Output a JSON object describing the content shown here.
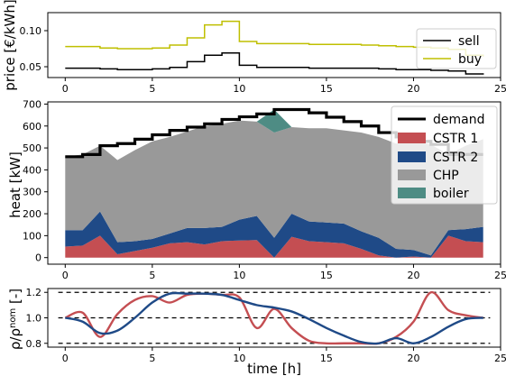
{
  "chart_data": [
    {
      "type": "line",
      "step": true,
      "ylabel": "price [€/kWh]",
      "xlim": [
        -1,
        25
      ],
      "ylim": [
        0.035,
        0.125
      ],
      "xticks": [
        0,
        5,
        10,
        15,
        20,
        25
      ],
      "yticks": [
        0.05,
        0.1
      ],
      "ytick_labels": [
        "0.05",
        "0.10"
      ],
      "legend": "top-right",
      "x": [
        0,
        1,
        2,
        3,
        4,
        5,
        6,
        7,
        8,
        9,
        10,
        11,
        12,
        13,
        14,
        15,
        16,
        17,
        18,
        19,
        20,
        21,
        22,
        23,
        24
      ],
      "series": [
        {
          "name": "sell",
          "color": "#000000",
          "values": [
            0.048,
            0.048,
            0.047,
            0.046,
            0.046,
            0.047,
            0.049,
            0.057,
            0.066,
            0.069,
            0.052,
            0.049,
            0.049,
            0.049,
            0.048,
            0.048,
            0.048,
            0.048,
            0.047,
            0.046,
            0.046,
            0.045,
            0.044,
            0.04,
            0.039
          ]
        },
        {
          "name": "buy",
          "color": "#bfbf00",
          "values": [
            0.078,
            0.078,
            0.076,
            0.075,
            0.075,
            0.076,
            0.08,
            0.09,
            0.108,
            0.113,
            0.085,
            0.082,
            0.082,
            0.082,
            0.081,
            0.081,
            0.081,
            0.08,
            0.079,
            0.078,
            0.077,
            0.076,
            0.074,
            0.066,
            0.064
          ]
        }
      ]
    },
    {
      "type": "area",
      "stacked": true,
      "step": true,
      "ylabel": "heat [kW]",
      "xlim": [
        -1,
        25
      ],
      "ylim": [
        -30,
        710
      ],
      "xticks": [
        0,
        5,
        10,
        15,
        20,
        25
      ],
      "yticks": [
        0,
        100,
        200,
        300,
        400,
        500,
        600,
        700
      ],
      "legend": "top-right",
      "x": [
        0,
        1,
        2,
        3,
        4,
        5,
        6,
        7,
        8,
        9,
        10,
        11,
        12,
        13,
        14,
        15,
        16,
        17,
        18,
        19,
        20,
        21,
        22,
        23,
        24
      ],
      "series": [
        {
          "name": "CSTR 1",
          "color": "#c44e52",
          "values": [
            50,
            55,
            100,
            15,
            30,
            45,
            65,
            70,
            60,
            75,
            78,
            80,
            0,
            95,
            75,
            70,
            65,
            40,
            10,
            0,
            5,
            0,
            100,
            75,
            70
          ]
        },
        {
          "name": "CSTR 2",
          "color": "#1f4a87",
          "values": [
            75,
            70,
            110,
            55,
            45,
            40,
            45,
            65,
            75,
            65,
            95,
            110,
            90,
            105,
            90,
            90,
            90,
            80,
            80,
            40,
            30,
            10,
            25,
            55,
            70
          ]
        },
        {
          "name": "CHP",
          "color": "#999999",
          "values": [
            335,
            345,
            300,
            375,
            415,
            445,
            440,
            440,
            465,
            470,
            452,
            430,
            480,
            395,
            425,
            430,
            425,
            450,
            460,
            480,
            495,
            506,
            345,
            380,
            400
          ]
        },
        {
          "name": "boiler",
          "color": "#4e8c84",
          "values": [
            0,
            0,
            0,
            0,
            0,
            0,
            0,
            0,
            0,
            0,
            0,
            0,
            105,
            0,
            0,
            0,
            0,
            0,
            0,
            0,
            0,
            0,
            0,
            0,
            0
          ]
        }
      ],
      "demand": {
        "name": "demand",
        "color": "#000000",
        "values": [
          460,
          470,
          510,
          520,
          540,
          560,
          580,
          595,
          610,
          630,
          642,
          655,
          675,
          675,
          660,
          640,
          620,
          600,
          570,
          550,
          530,
          516,
          470,
          470,
          470
        ]
      }
    },
    {
      "type": "line",
      "ylabel": "ρ/ρ^nom [-]",
      "xlabel": "time [h]",
      "xlim": [
        -1,
        25
      ],
      "ylim": [
        0.77,
        1.23
      ],
      "xticks": [
        0,
        5,
        10,
        15,
        20,
        25
      ],
      "yticks": [
        0.8,
        1.0,
        1.2
      ],
      "ytick_labels": [
        "0.8",
        "1.0",
        "1.2"
      ],
      "reference_lines": [
        0.8,
        1.0,
        1.2
      ],
      "series": [
        {
          "name": "CSTR 1",
          "color": "#c44e52",
          "x": [
            0,
            1,
            2,
            3,
            4,
            5,
            6,
            7,
            8,
            9,
            10,
            11,
            12,
            13,
            14,
            15,
            16,
            17,
            18,
            19,
            20,
            21,
            22,
            23,
            24
          ],
          "values": [
            1.0,
            1.04,
            0.85,
            1.03,
            1.14,
            1.17,
            1.12,
            1.18,
            1.19,
            1.18,
            1.16,
            0.92,
            1.07,
            0.92,
            0.82,
            0.8,
            0.8,
            0.8,
            0.8,
            0.85,
            0.97,
            1.2,
            1.06,
            1.02,
            1.0
          ]
        },
        {
          "name": "CSTR 2",
          "color": "#1f4a87",
          "x": [
            0,
            1,
            2,
            3,
            4,
            5,
            6,
            7,
            8,
            9,
            10,
            11,
            12,
            13,
            14,
            15,
            16,
            17,
            18,
            19,
            20,
            21,
            22,
            23,
            24
          ],
          "values": [
            1.0,
            0.97,
            0.88,
            0.9,
            1.0,
            1.12,
            1.19,
            1.19,
            1.19,
            1.18,
            1.14,
            1.1,
            1.08,
            1.05,
            0.99,
            0.92,
            0.86,
            0.81,
            0.8,
            0.84,
            0.8,
            0.85,
            0.93,
            0.99,
            1.0
          ]
        }
      ]
    }
  ],
  "axis_labels": {
    "price": "price [€/kWh]",
    "heat": "heat [kW]",
    "rho_main": "ρ/ρ",
    "rho_sup": "nom",
    "rho_tail": " [-]",
    "time": "time [h]"
  },
  "legend_top": [
    "sell",
    "buy"
  ],
  "legend_mid": [
    "demand",
    "CSTR 1",
    "CSTR 2",
    "CHP",
    "boiler"
  ]
}
